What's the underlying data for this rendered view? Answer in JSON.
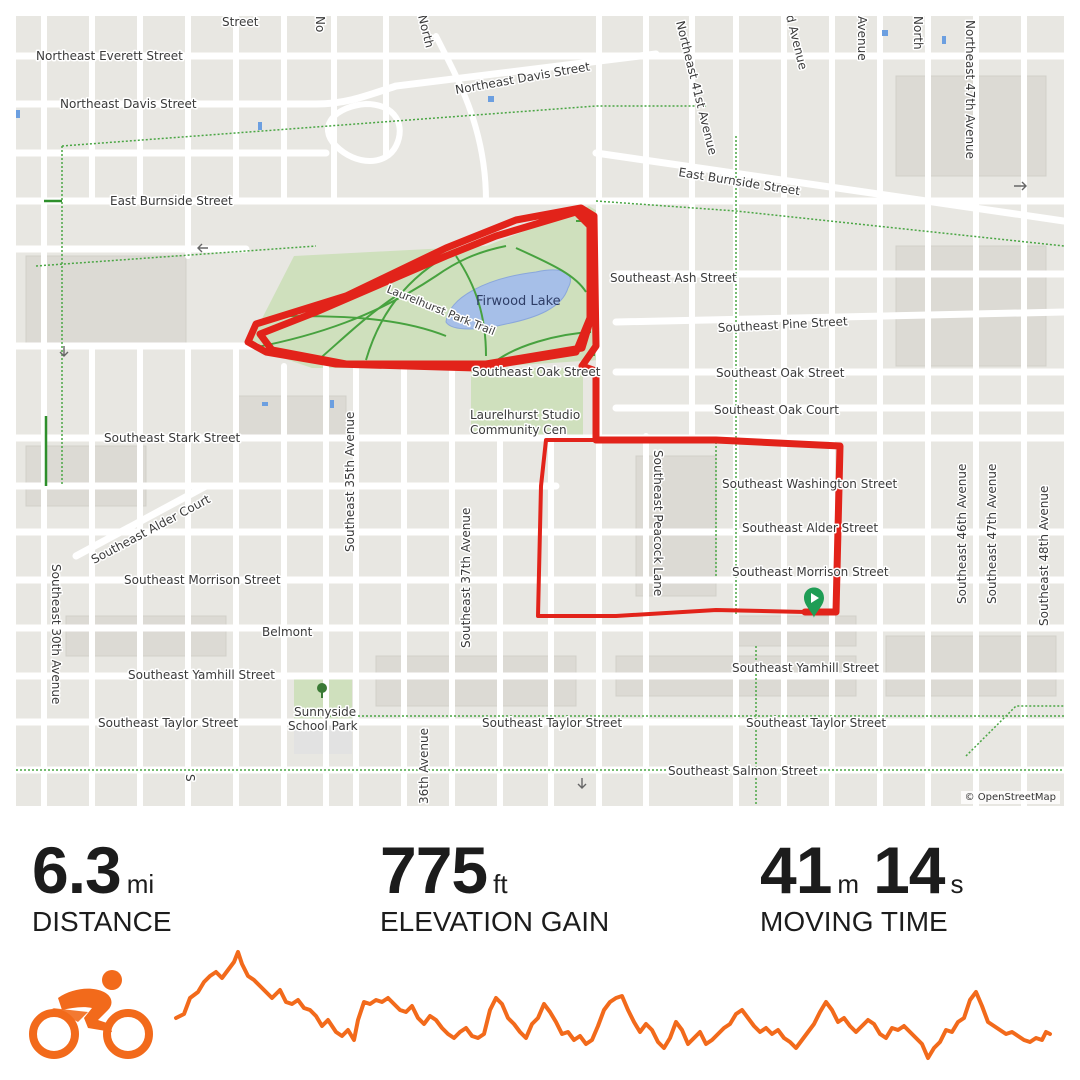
{
  "map": {
    "attribution": "© OpenStreetMap",
    "labels": {
      "everett": "Northeast Everett Street",
      "davis_w": "Northeast Davis Street",
      "davis_e": "Northeast Davis Street",
      "burnside_w": "East Burnside Street",
      "burnside_e": "East Burnside Street",
      "ash": "Southeast Ash Street",
      "pine": "Southeast Pine Street",
      "oak_w": "Southeast Oak Street",
      "oak_e": "Southeast Oak Street",
      "oak_court": "Southeast Oak Court",
      "stark": "Southeast Stark Street",
      "washington": "Southeast Washington Street",
      "alder_court": "Southeast Alder Court",
      "alder": "Southeast Alder Street",
      "morrison_w": "Southeast Morrison Street",
      "morrison_e": "Southeast Morrison Street",
      "belmont": "Belmont",
      "yamhill_w": "Southeast Yamhill Street",
      "yamhill_e": "Southeast Yamhill Street",
      "taylor_w": "Southeast Taylor Street",
      "taylor_m": "Southeast Taylor Street",
      "taylor_e": "Southeast Taylor Street",
      "salmon": "Southeast Salmon Street",
      "ave30": "Southeast 30th Avenue",
      "ave35": "Southeast 35th Avenue",
      "ave36": "36th Avenue",
      "ave37": "Southeast 37th Avenue",
      "ave41": "Northeast 41st Avenue",
      "ave46": "Southeast 46th Avenue",
      "ave47s": "Southeast 47th Avenue",
      "ave47n": "Northeast 47th Avenue",
      "ave48": "Southeast 48th Avenue",
      "peacock": "Southeast Peacock Lane",
      "north": "North",
      "lake": "Firwood Lake",
      "trail": "Laurelhurst Park Trail",
      "studio_1": "Laurelhurst Studio",
      "studio_2": "Community Cen",
      "sunnyside_1": "Sunnyside",
      "sunnyside_2": "School Park",
      "frag_street": "Street",
      "frag_avenue": "Avenue",
      "frag_d_avenue": "d Avenue",
      "frag_no": "No",
      "frag_north": "North",
      "frag_s": "S"
    },
    "colors": {
      "route": "#e2231a",
      "park": "#cfe0bd",
      "water": "#9db7e6",
      "trail": "#3f9e3a",
      "start": "#1f9d55"
    }
  },
  "stats": {
    "distance": {
      "value": "6.3",
      "unit": "mi",
      "label": "DISTANCE"
    },
    "elevation": {
      "value": "775",
      "unit": "ft",
      "label": "ELEVATION GAIN"
    },
    "moving_time": {
      "minutes": "41",
      "minutes_unit": "m",
      "seconds": "14",
      "seconds_unit": "s",
      "label": "MOVING TIME"
    }
  },
  "activity": {
    "type": "cycling",
    "icon": "bike-rider-icon",
    "color": "#f26a1b"
  }
}
